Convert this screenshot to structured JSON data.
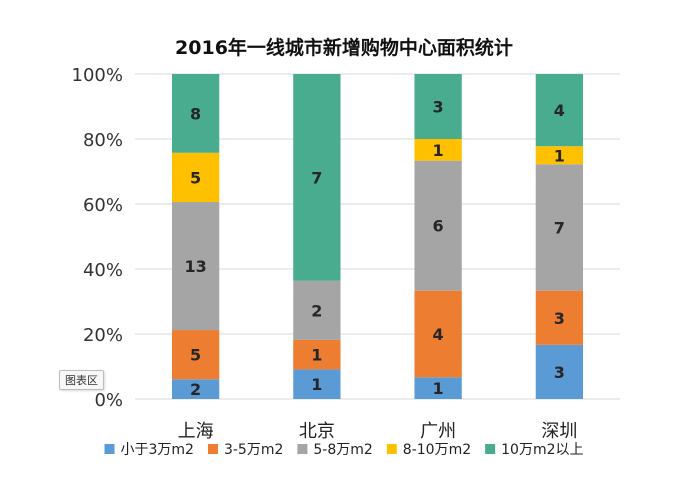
{
  "chart_data": {
    "type": "bar",
    "stacked": "percent",
    "title": "2016年一线城市新增购物中心面积统计",
    "categories": [
      "上海",
      "北京",
      "广州",
      "深圳"
    ],
    "series": [
      {
        "name": "小于3万m2",
        "color": "#5b9bd5",
        "values": [
          2,
          1,
          1,
          3
        ]
      },
      {
        "name": "3-5万m2",
        "color": "#ed7d31",
        "values": [
          5,
          1,
          4,
          3
        ]
      },
      {
        "name": "5-8万m2",
        "color": "#a5a5a5",
        "values": [
          13,
          2,
          6,
          7
        ]
      },
      {
        "name": "8-10万m2",
        "color": "#ffc000",
        "values": [
          5,
          0,
          1,
          1
        ]
      },
      {
        "name": "10万m2以上",
        "color": "#4aac8f",
        "values": [
          8,
          7,
          3,
          4
        ]
      }
    ],
    "ylim": [
      0,
      100
    ],
    "yticks": [
      "0%",
      "20%",
      "40%",
      "60%",
      "80%",
      "100%"
    ],
    "grid": true,
    "legend_position": "bottom"
  },
  "tooltip": "图表区"
}
